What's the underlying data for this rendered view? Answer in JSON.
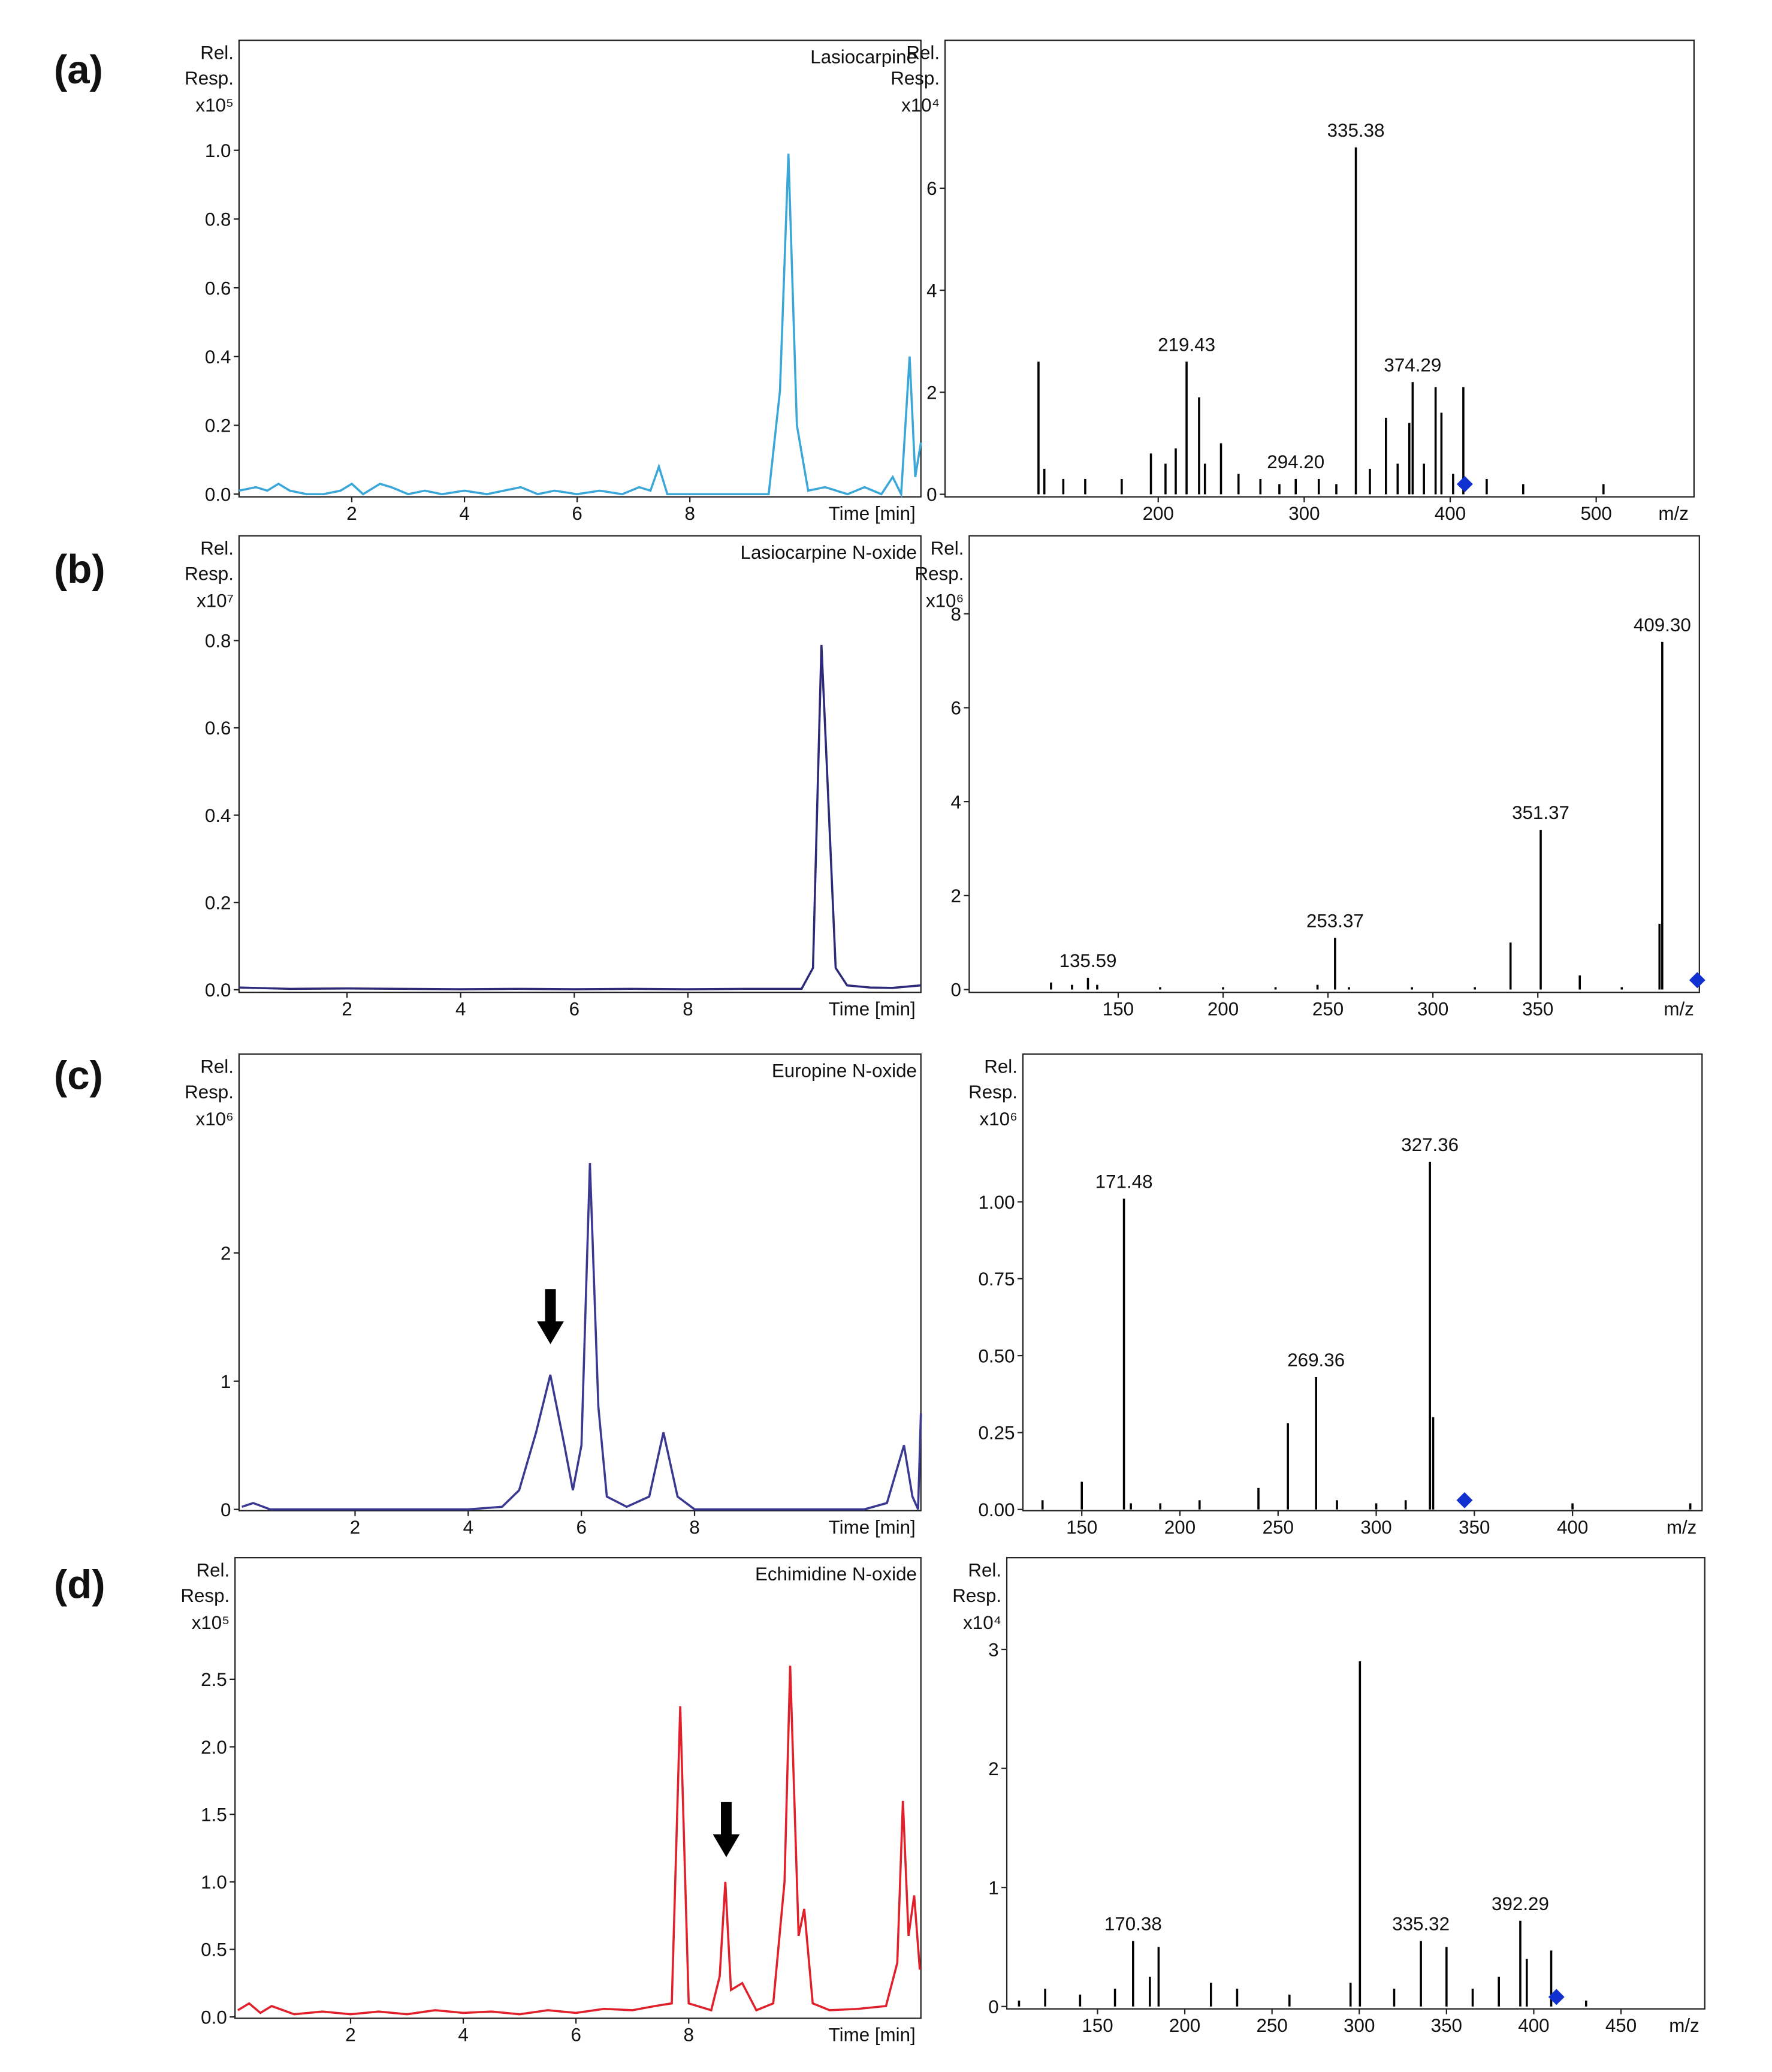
{
  "panel_labels": [
    "(a)",
    "(b)",
    "(c)",
    "(d)"
  ],
  "chart_data": [
    {
      "type": "line",
      "title": "Lasiocarpine",
      "y_label": [
        "Rel.",
        "Resp."
      ],
      "y_multiplier": "x10⁵",
      "x_label": "Time [min]",
      "color": "#3aa7d8",
      "x": [
        0,
        0.3,
        0.5,
        0.7,
        0.9,
        1.2,
        1.5,
        1.8,
        2.0,
        2.2,
        2.5,
        2.7,
        3.0,
        3.3,
        3.6,
        4.0,
        4.4,
        4.7,
        5.0,
        5.3,
        5.6,
        6.0,
        6.4,
        6.8,
        7.1,
        7.3,
        7.45,
        7.6,
        8.0,
        8.5,
        9.0,
        9.4,
        9.6,
        9.75,
        9.9,
        10.1,
        10.4,
        10.8,
        11.1,
        11.4,
        11.6,
        11.75,
        11.9,
        12.0,
        12.1
      ],
      "values": [
        0.01,
        0.02,
        0.01,
        0.03,
        0.01,
        0,
        0,
        0.01,
        0.03,
        0,
        0.03,
        0.02,
        0,
        0.01,
        0,
        0.01,
        0,
        0.01,
        0.02,
        0,
        0.01,
        0,
        0.01,
        0,
        0.02,
        0.01,
        0.08,
        0,
        0,
        0,
        0,
        0,
        0.3,
        0.99,
        0.2,
        0.01,
        0.02,
        0,
        0.02,
        0,
        0.05,
        0,
        0.4,
        0.05,
        0.15
      ],
      "xlim": [
        0,
        12.1
      ],
      "ylim": [
        -0.008,
        1.32
      ],
      "xticks": [
        2,
        4,
        6,
        8
      ],
      "yticks": [
        {
          "value": 0,
          "label": "0.0"
        },
        0.2,
        0.4,
        0.6,
        0.8,
        {
          "value": 1,
          "label": "1.0"
        }
      ]
    },
    {
      "type": "spectrum",
      "y_label": [
        "Rel.",
        "Resp."
      ],
      "y_multiplier": "x10⁴",
      "x_label": "m/z",
      "color": "#000000",
      "x": [
        118,
        122,
        135,
        150,
        175,
        195,
        205,
        212,
        219.43,
        228,
        232,
        243,
        255,
        270,
        283,
        294.2,
        310,
        322,
        335.38,
        345,
        356,
        364,
        372,
        374.29,
        382,
        390,
        394,
        402,
        409,
        425,
        450,
        505
      ],
      "values": [
        2.6,
        0.5,
        0.3,
        0.3,
        0.3,
        0.8,
        0.6,
        0.9,
        2.6,
        1.9,
        0.6,
        1.0,
        0.4,
        0.3,
        0.2,
        0.3,
        0.3,
        0.2,
        6.8,
        0.5,
        1.5,
        0.6,
        1.4,
        2.2,
        0.6,
        2.1,
        1.6,
        0.4,
        2.1,
        0.3,
        0.2,
        0.2
      ],
      "peak_labels": [
        219.43,
        {
          "value": 294.2,
          "label": "294.20"
        },
        335.38,
        374.29
      ],
      "markers": {
        "x": [
          410
        ],
        "values": [
          0.2
        ],
        "color": "#1030d0"
      },
      "xlim": [
        54,
        567
      ],
      "ylim": [
        -0.05,
        8.9
      ],
      "xticks": [
        200,
        300,
        400,
        500
      ],
      "yticks": [
        0,
        2,
        4,
        6
      ]
    },
    {
      "type": "line",
      "title": "Lasiocarpine N-oxide",
      "y_label": [
        "Rel.",
        "Resp."
      ],
      "y_multiplier": "x10⁷",
      "x_label": "Time [min]",
      "color": "#2e2a7a",
      "x": [
        0.1,
        1,
        2,
        3,
        4,
        5,
        6,
        7,
        8,
        9,
        10,
        10.2,
        10.35,
        10.45,
        10.6,
        10.8,
        11.2,
        11.6,
        12.1
      ],
      "values": [
        0.005,
        0.002,
        0.003,
        0.002,
        0.001,
        0.002,
        0.001,
        0.002,
        0.001,
        0.002,
        0.002,
        0.05,
        0.79,
        0.5,
        0.05,
        0.01,
        0.005,
        0.004,
        0.01
      ],
      "xlim": [
        0.1,
        12.1
      ],
      "ylim": [
        -0.006,
        1.04
      ],
      "xticks": [
        2,
        4,
        6,
        8
      ],
      "yticks": [
        {
          "value": 0,
          "label": "0.0"
        },
        0.2,
        0.4,
        0.6,
        0.8
      ]
    },
    {
      "type": "spectrum",
      "y_label": [
        "Rel.",
        "Resp."
      ],
      "y_multiplier": "x10⁶",
      "x_label": "m/z",
      "color": "#000000",
      "x": [
        118,
        128,
        135.59,
        140,
        170,
        200,
        225,
        245,
        253.37,
        260,
        290,
        320,
        337,
        351.37,
        370,
        390,
        408,
        409.3
      ],
      "values": [
        0.15,
        0.1,
        0.25,
        0.1,
        0.05,
        0.05,
        0.05,
        0.1,
        1.1,
        0.05,
        0.05,
        0.05,
        1.0,
        3.4,
        0.3,
        0.05,
        1.4,
        7.4
      ],
      "peak_labels": [
        135.59,
        253.37,
        351.37,
        {
          "value": 409.3,
          "label": "409.30"
        }
      ],
      "markers": {
        "x": [
          426
        ],
        "values": [
          0.2
        ],
        "color": "#1030d0"
      },
      "xlim": [
        79,
        427
      ],
      "ylim": [
        -0.06,
        9.66
      ],
      "xticks": [
        150,
        200,
        250,
        300,
        350
      ],
      "yticks": [
        0,
        2,
        4,
        6,
        8
      ]
    },
    {
      "type": "line",
      "title": "Europine N-oxide",
      "y_label": [
        "Rel.",
        "Resp."
      ],
      "y_multiplier": "x10⁶",
      "x_label": "Time [min]",
      "color": "#3a3890",
      "x": [
        0,
        0.2,
        0.5,
        1,
        2,
        3,
        4,
        4.6,
        4.9,
        5.2,
        5.45,
        5.7,
        5.85,
        6.0,
        6.15,
        6.3,
        6.45,
        6.8,
        7.2,
        7.45,
        7.7,
        8.0,
        9,
        10,
        11,
        11.4,
        11.7,
        11.85,
        11.95,
        12.0
      ],
      "values": [
        0.02,
        0.05,
        0,
        0,
        0,
        0,
        0,
        0.02,
        0.15,
        0.6,
        1.05,
        0.5,
        0.15,
        0.5,
        2.7,
        0.8,
        0.1,
        0.02,
        0.1,
        0.6,
        0.1,
        0,
        0,
        0,
        0,
        0.05,
        0.5,
        0.1,
        0,
        0.75
      ],
      "xlim": [
        -0.05,
        12.0
      ],
      "ylim": [
        -0.01,
        3.55
      ],
      "xticks": [
        2,
        4,
        6,
        8
      ],
      "yticks": [
        0,
        1,
        2
      ]
    },
    {
      "type": "spectrum",
      "y_label": [
        "Rel.",
        "Resp."
      ],
      "y_multiplier": "x10⁶",
      "x_label": "m/z",
      "color": "#000000",
      "x": [
        130,
        150,
        171.48,
        175,
        190,
        210,
        240,
        255,
        269.36,
        280,
        300,
        315,
        327.36,
        329,
        400,
        460
      ],
      "values": [
        0.03,
        0.09,
        1.01,
        0.02,
        0.02,
        0.03,
        0.07,
        0.28,
        0.43,
        0.03,
        0.02,
        0.03,
        1.13,
        0.3,
        0.02,
        0.02
      ],
      "peak_labels": [
        171.48,
        269.36,
        327.36
      ],
      "markers": {
        "x": [
          345
        ],
        "values": [
          0.03
        ],
        "color": "#1030d0"
      },
      "xlim": [
        120,
        466
      ],
      "ylim": [
        -0.004,
        1.48
      ],
      "xticks": [
        150,
        200,
        250,
        300,
        350,
        400
      ],
      "yticks": [
        {
          "value": 0,
          "label": "0.00"
        },
        {
          "value": 0.25,
          "label": "0.25"
        },
        {
          "value": 0.5,
          "label": "0.50"
        },
        {
          "value": 0.75,
          "label": "0.75"
        },
        {
          "value": 1,
          "label": "1.00"
        }
      ]
    },
    {
      "type": "line",
      "title": "Echimidine N-oxide",
      "y_label": [
        "Rel.",
        "Resp."
      ],
      "y_multiplier": "x10⁵",
      "x_label": "Time [min]",
      "color": "#e0202a",
      "x": [
        0,
        0.2,
        0.4,
        0.6,
        1.0,
        1.5,
        2.0,
        2.5,
        3.0,
        3.5,
        4.0,
        4.5,
        5.0,
        5.5,
        6.0,
        6.5,
        7.0,
        7.4,
        7.7,
        7.85,
        8.0,
        8.4,
        8.55,
        8.65,
        8.75,
        8.95,
        9.2,
        9.5,
        9.7,
        9.8,
        9.95,
        10.05,
        10.2,
        10.5,
        11.0,
        11.5,
        11.7,
        11.8,
        11.9,
        12.0,
        12.1
      ],
      "values": [
        0.05,
        0.1,
        0.03,
        0.08,
        0.02,
        0.04,
        0.02,
        0.04,
        0.02,
        0.05,
        0.03,
        0.04,
        0.02,
        0.05,
        0.03,
        0.06,
        0.05,
        0.08,
        0.1,
        2.3,
        0.1,
        0.05,
        0.3,
        1.0,
        0.2,
        0.25,
        0.05,
        0.1,
        1.0,
        2.6,
        0.6,
        0.8,
        0.1,
        0.05,
        0.06,
        0.08,
        0.4,
        1.6,
        0.6,
        0.9,
        0.35
      ],
      "xlim": [
        -0.05,
        12.12
      ],
      "ylim": [
        -0.01,
        3.4
      ],
      "xticks": [
        2,
        4,
        6,
        8
      ],
      "yticks": [
        {
          "value": 0,
          "label": "0.0"
        },
        0.5,
        {
          "value": 1,
          "label": "1.0"
        },
        1.5,
        {
          "value": 2,
          "label": "2.0"
        },
        2.5
      ]
    },
    {
      "type": "spectrum",
      "y_label": [
        "Rel.",
        "Resp."
      ],
      "y_multiplier": "x10⁴",
      "x_label": "m/z",
      "color": "#000000",
      "x": [
        105,
        120,
        140,
        160,
        170.38,
        180,
        185,
        215,
        230,
        260,
        295,
        300.37,
        320,
        335.32,
        350,
        365,
        380,
        392.29,
        396,
        410,
        430
      ],
      "values": [
        0.05,
        0.15,
        0.1,
        0.15,
        0.55,
        0.25,
        0.5,
        0.2,
        0.15,
        0.1,
        0.2,
        2.9,
        0.15,
        0.55,
        0.5,
        0.15,
        0.25,
        0.72,
        0.4,
        0.47,
        0.05
      ],
      "peak_labels": [
        170.38,
        335.32,
        392.29
      ],
      "markers": {
        "x": [
          413
        ],
        "values": [
          0.08
        ],
        "color": "#1030d0"
      },
      "xlim": [
        98,
        498
      ],
      "ylim": [
        -0.02,
        3.77
      ],
      "xticks": [
        150,
        200,
        250,
        300,
        350,
        400,
        450
      ],
      "yticks": [
        0,
        1,
        2,
        3
      ]
    }
  ]
}
